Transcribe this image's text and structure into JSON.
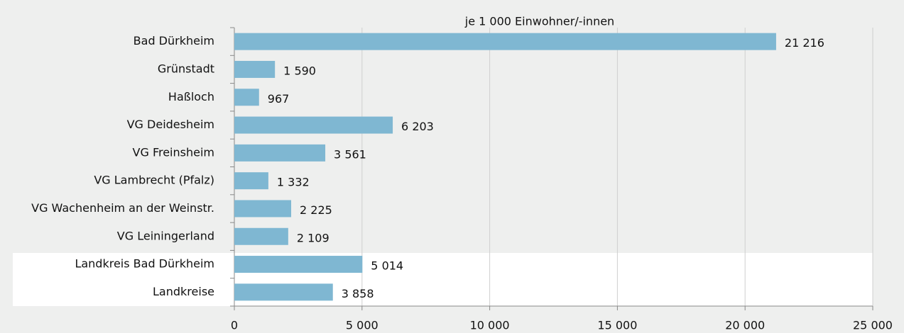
{
  "chart_data": {
    "type": "bar",
    "orientation": "horizontal",
    "subtitle": "je 1 000 Einwohner/-innen",
    "categories": [
      "Bad Dürkheim",
      "Grünstadt",
      "Haßloch",
      "VG Deidesheim",
      "VG Freinsheim",
      "VG Lambrecht (Pfalz)",
      "VG Wachenheim an der Weinstr.",
      "VG Leiningerland",
      "Landkreis Bad Dürkheim",
      "Landkreise"
    ],
    "values": [
      21216,
      1590,
      967,
      6203,
      3561,
      1332,
      2225,
      2109,
      5014,
      3858
    ],
    "value_labels": [
      "21 216",
      "1 590",
      "967",
      "6 203",
      "3 561",
      "1 332",
      "2 225",
      "2 109",
      "5 014",
      "3 858"
    ],
    "color": "#7fb7d2",
    "xlim": [
      0,
      25000
    ],
    "xticks": [
      0,
      {
        "value": 5000,
        "label": "5 000"
      },
      {
        "value": 10000,
        "label": "10 000"
      },
      {
        "value": 15000,
        "label": "15 000"
      },
      {
        "value": 20000,
        "label": "20 000"
      },
      {
        "value": 25000,
        "label": "25 000"
      }
    ],
    "grid": true
  }
}
